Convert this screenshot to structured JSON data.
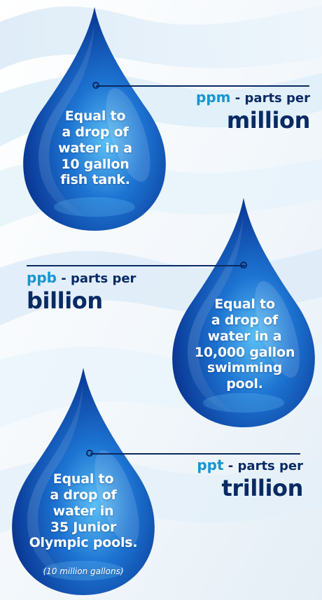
{
  "theme": {
    "navy": "#092a63",
    "accent": "#1596d2",
    "drop_dark": "#072c8e",
    "drop_mid": "#1c72d0",
    "drop_light": "#55b9f3"
  },
  "background": {
    "name": "water-wave-background"
  },
  "items": [
    {
      "abbr": "ppm",
      "suffix": " - parts per",
      "scale": "million",
      "text": "Equal to\na drop of\nwater in a\n10 gallon\nfish tank.",
      "note": ""
    },
    {
      "abbr": "ppb",
      "suffix": " - parts per",
      "scale": "billion",
      "text": "Equal to\na drop of\nwater in a\n10,000 gallon\nswimming\npool.",
      "note": ""
    },
    {
      "abbr": "ppt",
      "suffix": " - parts per",
      "scale": "trillion",
      "text": "Equal to\na drop of\nwater in\n35 Junior\nOlympic pools.",
      "note": "(10 million gallons)"
    }
  ]
}
